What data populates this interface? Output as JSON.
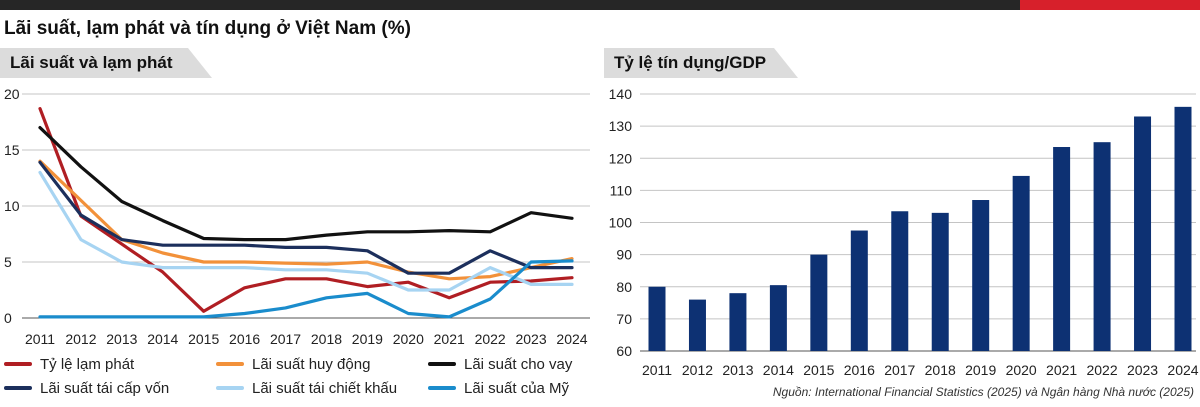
{
  "title": "Lãi suất, lạm phát và tín dụng ở Việt Nam (%)",
  "source": "Nguồn: International Financial Statistics (2025) và Ngân hàng Nhà nước (2025)",
  "chart_data": [
    {
      "type": "line",
      "title": "Lãi suất và lạm phát",
      "x": [
        2011,
        2012,
        2013,
        2014,
        2015,
        2016,
        2017,
        2018,
        2019,
        2020,
        2021,
        2022,
        2023,
        2024
      ],
      "xlabel": "",
      "ylabel": "",
      "ylim": [
        0,
        20
      ],
      "yticks": [
        0,
        5,
        10,
        15,
        20
      ],
      "grid": true,
      "legend_position": "bottom",
      "series": [
        {
          "name": "Tỷ lệ lạm phát",
          "color": "#b01e23",
          "values": [
            18.7,
            9.1,
            6.6,
            4.1,
            0.6,
            2.7,
            3.5,
            3.5,
            2.8,
            3.2,
            1.8,
            3.2,
            3.3,
            3.6
          ]
        },
        {
          "name": "Lãi suất huy động",
          "color": "#f2913a",
          "values": [
            14.0,
            10.5,
            7.0,
            5.8,
            5.0,
            5.0,
            4.9,
            4.8,
            5.0,
            4.1,
            3.5,
            3.7,
            4.5,
            5.3
          ]
        },
        {
          "name": "Lãi suất cho vay",
          "color": "#111111",
          "values": [
            17.0,
            13.5,
            10.4,
            8.7,
            7.1,
            7.0,
            7.0,
            7.4,
            7.7,
            7.7,
            7.8,
            7.7,
            9.4,
            8.9
          ]
        },
        {
          "name": "Lãi suất tái cấp vốn",
          "color": "#1c2f5c",
          "values": [
            13.9,
            9.2,
            7.0,
            6.5,
            6.5,
            6.5,
            6.3,
            6.3,
            6.0,
            4.0,
            4.0,
            6.0,
            4.5,
            4.5
          ]
        },
        {
          "name": "Lãi suất tái chiết khấu",
          "color": "#a7d4f2",
          "values": [
            13.0,
            7.0,
            5.0,
            4.5,
            4.5,
            4.5,
            4.3,
            4.3,
            4.0,
            2.5,
            2.5,
            4.5,
            3.0,
            3.0
          ]
        },
        {
          "name": "Lãi suất của Mỹ",
          "color": "#1a8ccc",
          "values": [
            0.1,
            0.1,
            0.1,
            0.1,
            0.1,
            0.4,
            0.9,
            1.8,
            2.2,
            0.4,
            0.1,
            1.7,
            5.0,
            5.1
          ]
        }
      ]
    },
    {
      "type": "bar",
      "title": "Tỷ lệ tín dụng/GDP",
      "categories": [
        2011,
        2012,
        2013,
        2014,
        2015,
        2016,
        2017,
        2018,
        2019,
        2020,
        2021,
        2022,
        2023,
        2024
      ],
      "values": [
        80,
        76,
        78,
        80.5,
        90,
        97.5,
        103.5,
        103,
        107,
        114.5,
        123.5,
        125,
        133,
        136
      ],
      "color": "#0d3173",
      "ylim": [
        60,
        140
      ],
      "yticks": [
        60,
        70,
        80,
        90,
        100,
        110,
        120,
        130,
        140
      ],
      "grid": true
    }
  ]
}
